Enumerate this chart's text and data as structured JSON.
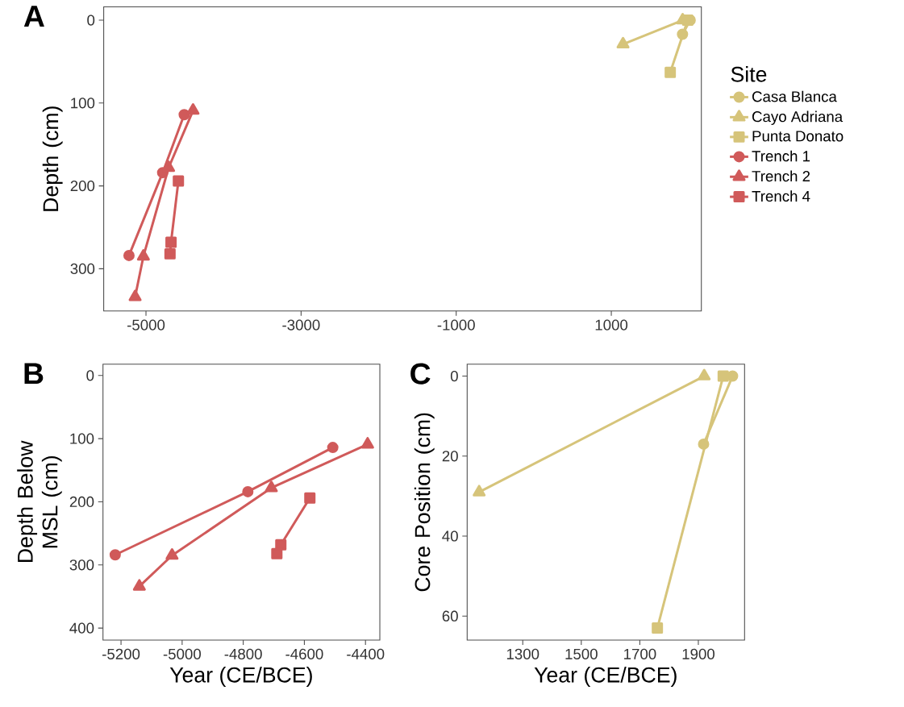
{
  "chart_data": [
    {
      "type": "line",
      "title": "A",
      "ylabel": "Depth (cm)",
      "legend": "right",
      "legend_title": "Site",
      "xlim": [
        -5545,
        2161
      ],
      "ylim": [
        351,
        -16
      ],
      "xticks": [
        -5000,
        -3000,
        -1000,
        1000
      ],
      "yticks": [
        0,
        100,
        200,
        300
      ],
      "series": [
        {
          "name": "Casa Blanca",
          "color": "#d6c47a",
          "marker": "circle",
          "x": [
            2017,
            1918
          ],
          "values": [
            0,
            17
          ]
        },
        {
          "name": "Cayo Adriana",
          "color": "#d6c47a",
          "marker": "triangle",
          "x": [
            1920,
            1151
          ],
          "values": [
            0,
            29
          ]
        },
        {
          "name": "Punta Donato",
          "color": "#d6c47a",
          "marker": "square",
          "x": [
            1985,
            1760
          ],
          "values": [
            0,
            63
          ]
        },
        {
          "name": "Trench 1",
          "color": "#d05a5a",
          "marker": "circle",
          "x": [
            -4507,
            -4785,
            -5219
          ],
          "values": [
            114,
            184,
            284
          ]
        },
        {
          "name": "Trench 2",
          "color": "#d05a5a",
          "marker": "triangle",
          "x": [
            -4393,
            -4708,
            -5033,
            -5140
          ],
          "values": [
            109,
            178,
            285,
            334
          ]
        },
        {
          "name": "Trench 4",
          "color": "#d05a5a",
          "marker": "square",
          "x": [
            -4582,
            -4677,
            -4690
          ],
          "values": [
            194,
            268,
            282
          ]
        }
      ]
    },
    {
      "type": "line",
      "title": "B",
      "xlabel": "Year (CE/BCE)",
      "ylabel": "Depth Below MSL (cm)",
      "xlim": [
        -5259,
        -4353
      ],
      "ylim": [
        419,
        -18
      ],
      "xticks": [
        -5200,
        -5000,
        -4800,
        -4600,
        -4400
      ],
      "yticks": [
        0,
        100,
        200,
        300,
        400
      ],
      "series": [
        {
          "color": "#d05a5a",
          "marker": "circle",
          "x": [
            -4507,
            -4785,
            -5219
          ],
          "values": [
            114,
            184,
            284
          ]
        },
        {
          "color": "#d05a5a",
          "marker": "triangle",
          "x": [
            -4393,
            -4708,
            -5033,
            -5140
          ],
          "values": [
            109,
            178,
            285,
            334
          ]
        },
        {
          "color": "#d05a5a",
          "marker": "square",
          "x": [
            -4582,
            -4677,
            -4690
          ],
          "values": [
            194,
            268,
            282
          ]
        }
      ]
    },
    {
      "type": "line",
      "title": "C",
      "xlabel": "Year (CE/BCE)",
      "ylabel": "Core Position (cm)",
      "xlim": [
        1110,
        2058
      ],
      "ylim": [
        66,
        -3
      ],
      "xticks": [
        1300,
        1500,
        1700,
        1900
      ],
      "yticks": [
        0,
        20,
        40,
        60
      ],
      "series": [
        {
          "color": "#d6c47a",
          "marker": "circle",
          "x": [
            2017,
            1918
          ],
          "values": [
            0,
            17
          ]
        },
        {
          "color": "#d6c47a",
          "marker": "triangle",
          "x": [
            1920,
            1151
          ],
          "values": [
            0,
            29
          ]
        },
        {
          "color": "#d6c47a",
          "marker": "square",
          "x": [
            1985,
            1760
          ],
          "values": [
            0,
            63
          ]
        }
      ]
    }
  ]
}
